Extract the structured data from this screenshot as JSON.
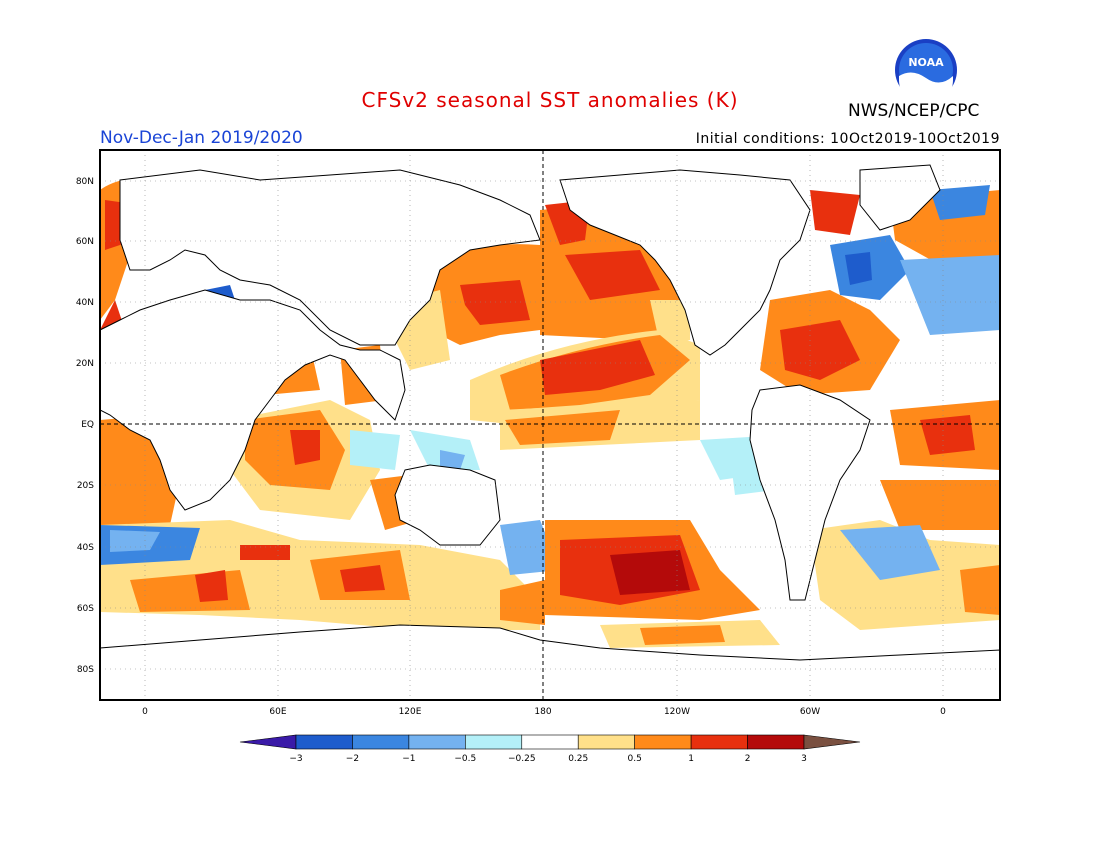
{
  "title": "CFSv2 seasonal SST anomalies (K)",
  "season": "Nov-Dec-Jan 2019/2020",
  "initial_conditions": "Initial conditions: 10Oct2019-10Oct2019",
  "agency": "NWS/NCEP/CPC",
  "logo_text": "NOAA",
  "lat_labels": [
    "80N",
    "60N",
    "40N",
    "20N",
    "EQ",
    "20S",
    "40S",
    "60S",
    "80S"
  ],
  "lon_labels": [
    "0",
    "60E",
    "120E",
    "180",
    "120W",
    "60W",
    "0"
  ],
  "colorbar": {
    "labels": [
      "−3",
      "−2",
      "−1",
      "−0.5",
      "−0.25",
      "0.25",
      "0.5",
      "1",
      "2",
      "3"
    ],
    "colors": [
      "#3a1aa8",
      "#1e5ccc",
      "#3b86e0",
      "#74b2f0",
      "#b4f0f8",
      "#ffffff",
      "#ffe08a",
      "#ff8a1a",
      "#e8300e",
      "#b40a0a",
      "#7a5040"
    ]
  },
  "anomaly_colors": {
    "warm1": "#ffe08a",
    "warm2": "#ff8a1a",
    "warm3": "#e8300e",
    "warm4": "#b40a0a",
    "cool1": "#b4f0f8",
    "cool2": "#74b2f0",
    "cool3": "#3b86e0",
    "cool4": "#1e5ccc"
  }
}
